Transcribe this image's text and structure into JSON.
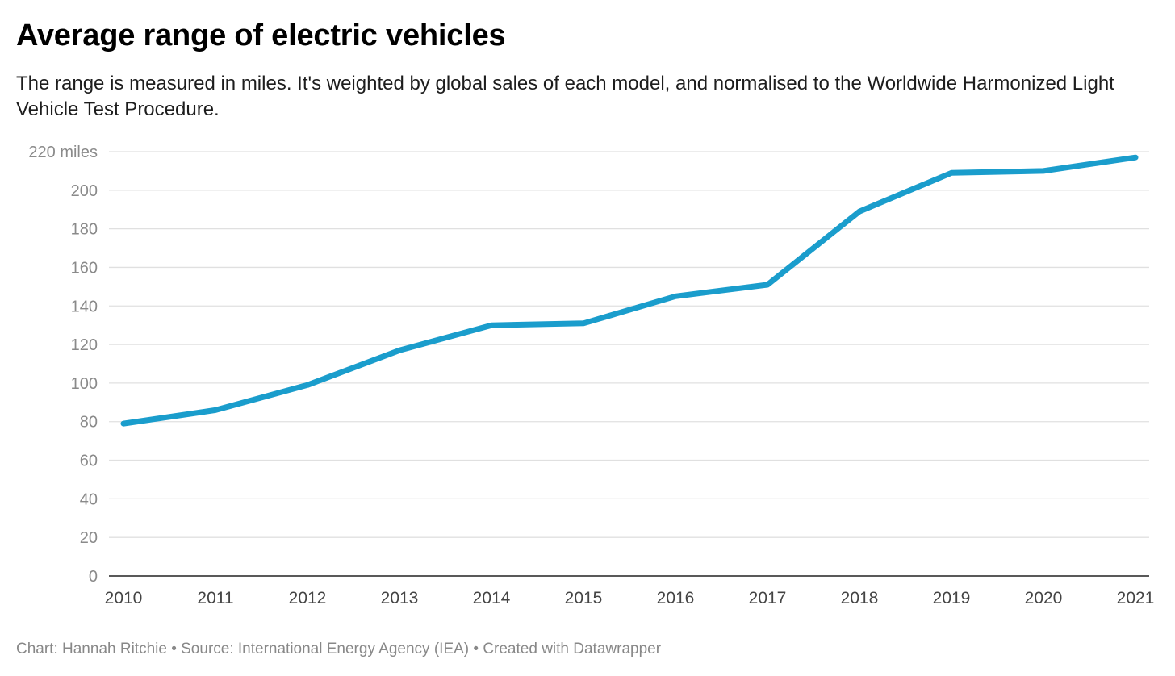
{
  "header": {
    "title": "Average range of electric vehicles",
    "subtitle": "The range is measured in miles. It's weighted by global sales of each model, and normalised to the Worldwide Harmonized Light Vehicle Test Procedure."
  },
  "footer": {
    "credit": "Chart: Hannah Ritchie • Source: International Energy Agency (IEA) • Created with Datawrapper"
  },
  "chart_data": {
    "type": "line",
    "title": "Average range of electric vehicles",
    "subtitle": "The range is measured in miles. It's weighted by global sales of each model, and normalised to the Worldwide Harmonized Light Vehicle Test Procedure.",
    "xlabel": "",
    "ylabel": "",
    "y_unit": "miles",
    "x": [
      "2010",
      "2011",
      "2012",
      "2013",
      "2014",
      "2015",
      "2016",
      "2017",
      "2018",
      "2019",
      "2020",
      "2021"
    ],
    "series": [
      {
        "values": [
          79,
          86,
          99,
          117,
          130,
          131,
          145,
          151,
          189,
          209,
          210,
          217
        ],
        "color": "#1a9dcc"
      }
    ],
    "ylim": [
      0,
      220
    ],
    "yticks": [
      0,
      20,
      40,
      60,
      80,
      100,
      120,
      140,
      160,
      180,
      200,
      220
    ],
    "ytick_labels": [
      "0",
      "20",
      "40",
      "60",
      "80",
      "100",
      "120",
      "140",
      "160",
      "180",
      "200",
      "220 miles"
    ],
    "grid": true,
    "legend": "none",
    "colors": {
      "line": "#1a9dcc",
      "grid": "#e0e0e0",
      "axis": "#222222"
    }
  }
}
